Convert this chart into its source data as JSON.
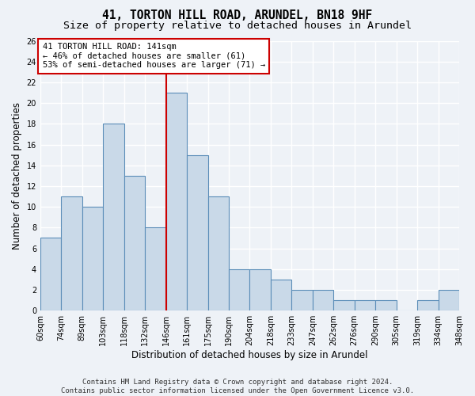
{
  "title": "41, TORTON HILL ROAD, ARUNDEL, BN18 9HF",
  "subtitle": "Size of property relative to detached houses in Arundel",
  "xlabel": "Distribution of detached houses by size in Arundel",
  "ylabel": "Number of detached properties",
  "bar_values": [
    7,
    11,
    10,
    18,
    13,
    8,
    21,
    15,
    11,
    4,
    4,
    3,
    2,
    2,
    1,
    1,
    1,
    0,
    1,
    2
  ],
  "bin_labels": [
    "60sqm",
    "74sqm",
    "89sqm",
    "103sqm",
    "118sqm",
    "132sqm",
    "146sqm",
    "161sqm",
    "175sqm",
    "190sqm",
    "204sqm",
    "218sqm",
    "233sqm",
    "247sqm",
    "262sqm",
    "276sqm",
    "290sqm",
    "305sqm",
    "319sqm",
    "334sqm",
    "348sqm"
  ],
  "bar_color": "#c9d9e8",
  "bar_edge_color": "#5b8db8",
  "vline_bin_index": 5.5,
  "annotation_text": "41 TORTON HILL ROAD: 141sqm\n← 46% of detached houses are smaller (61)\n53% of semi-detached houses are larger (71) →",
  "annotation_box_color": "#ffffff",
  "annotation_box_edge": "#cc0000",
  "vline_color": "#cc0000",
  "footnote": "Contains HM Land Registry data © Crown copyright and database right 2024.\nContains public sector information licensed under the Open Government Licence v3.0.",
  "ylim": [
    0,
    26
  ],
  "yticks": [
    0,
    2,
    4,
    6,
    8,
    10,
    12,
    14,
    16,
    18,
    20,
    22,
    24,
    26
  ],
  "background_color": "#eef2f7",
  "grid_color": "#ffffff",
  "title_fontsize": 10.5,
  "subtitle_fontsize": 9.5,
  "axis_label_fontsize": 8.5,
  "tick_fontsize": 7,
  "footnote_fontsize": 6.5
}
